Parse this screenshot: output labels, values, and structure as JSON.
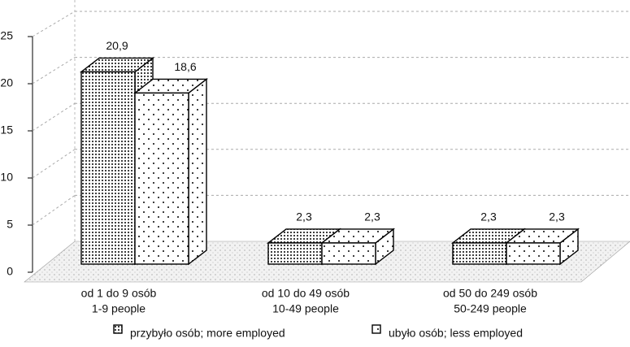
{
  "chart_data": {
    "type": "bar3d",
    "categories": [
      [
        "od 1 do 9 osób",
        "1-9 people"
      ],
      [
        "od 10 do 49 osób",
        "10-49 people"
      ],
      [
        "od 50 do 249 osób",
        "50-249 people"
      ]
    ],
    "series": [
      {
        "name": "przybyło osób; more employed",
        "values": [
          20.9,
          2.3,
          2.3
        ],
        "value_labels": [
          "20,9",
          "2,3",
          "2,3"
        ]
      },
      {
        "name": "ubyło osób; less employed",
        "values": [
          18.6,
          2.3,
          2.3
        ],
        "value_labels": [
          "18,6",
          "2,3",
          "2,3"
        ]
      }
    ],
    "ylim": [
      0,
      25
    ],
    "yticks": [
      0,
      5,
      10,
      15,
      20,
      25
    ],
    "grid": true
  }
}
